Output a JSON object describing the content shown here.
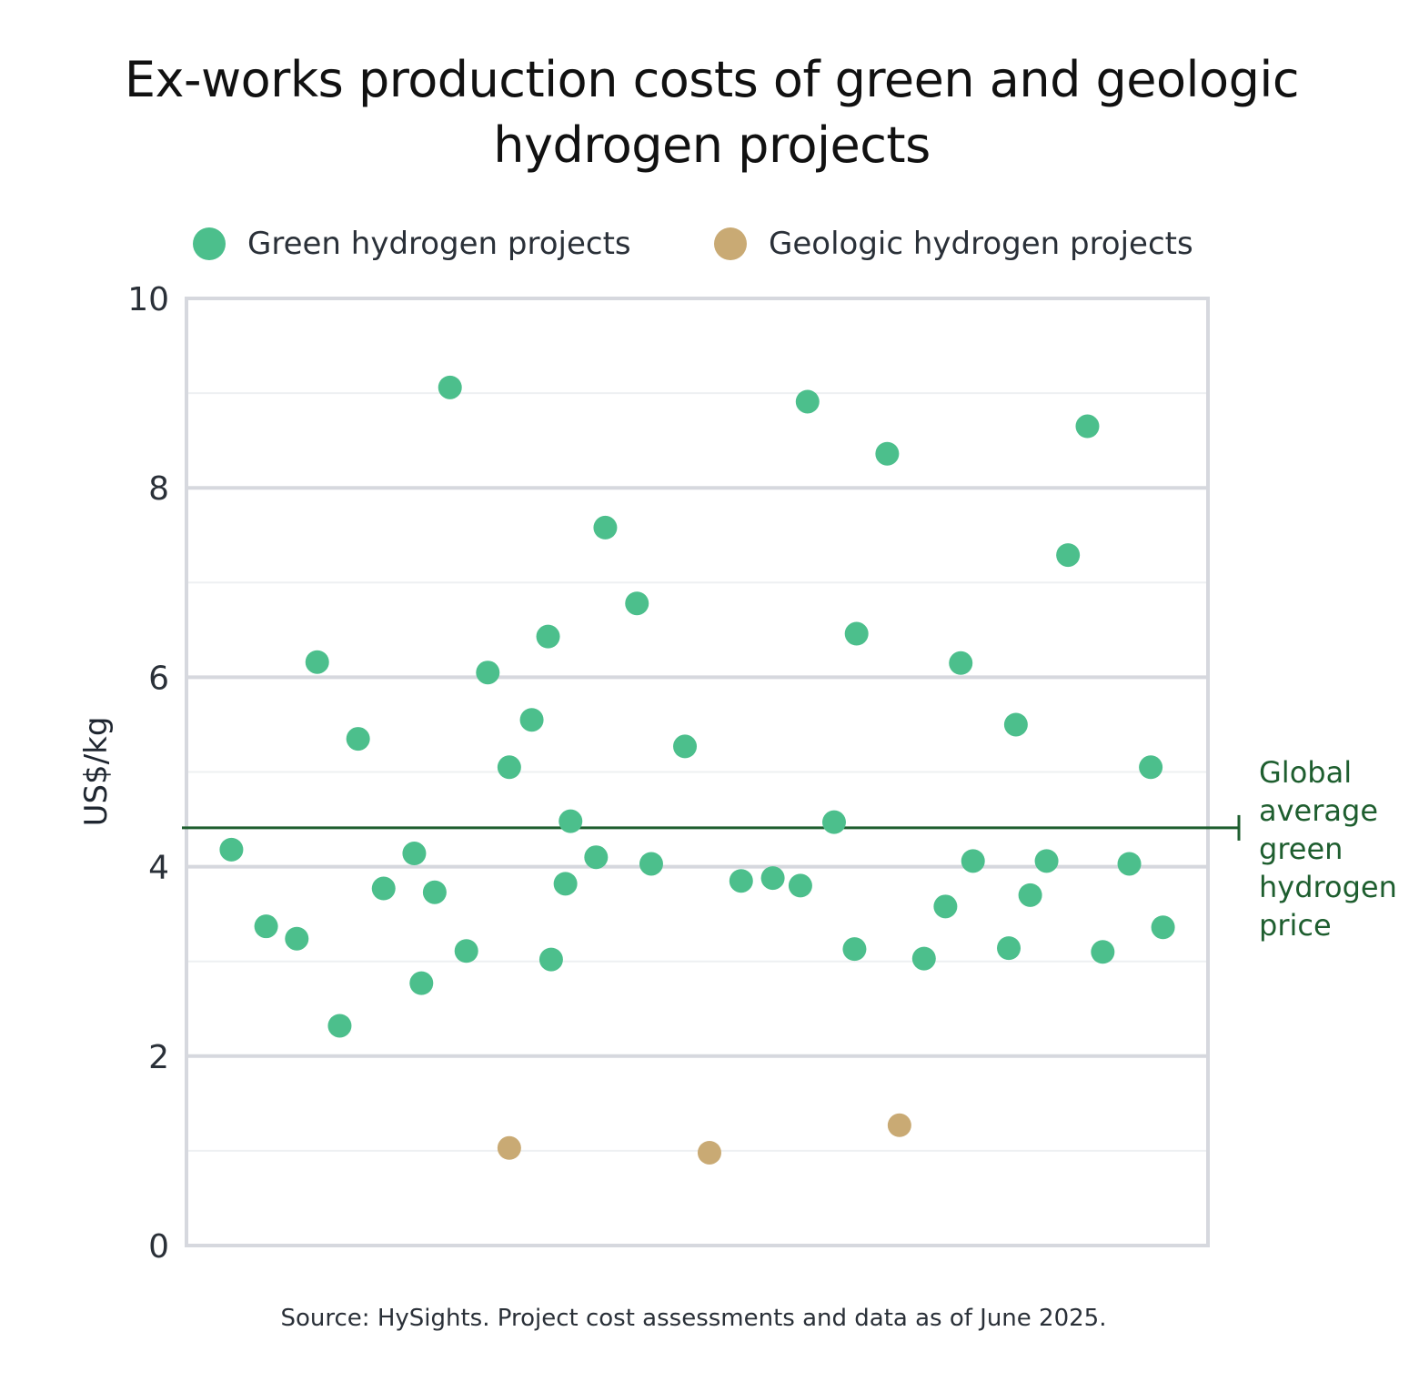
{
  "chart_data": {
    "type": "scatter",
    "title": "Ex-works production costs of green and geologic hydrogen projects",
    "title_lines": [
      "Ex-works production costs of green and geologic",
      "hydrogen projects"
    ],
    "xlabel": "",
    "ylabel": "US$/kg",
    "ylim": [
      0,
      10
    ],
    "yticks": [
      0,
      2,
      4,
      6,
      8,
      10
    ],
    "xlim": [
      0,
      1
    ],
    "grid": true,
    "legend_position": "top",
    "colors": {
      "green": "#4cbf8c",
      "geologic": "#c9aa74",
      "average": "#1e5e2f",
      "axis": "#d6d8de"
    },
    "series": [
      {
        "name": "Green hydrogen projects",
        "color": "#4cbf8c",
        "points": [
          [
            0.044,
            4.18
          ],
          [
            0.078,
            3.37
          ],
          [
            0.108,
            3.24
          ],
          [
            0.128,
            6.16
          ],
          [
            0.15,
            2.32
          ],
          [
            0.168,
            5.35
          ],
          [
            0.193,
            3.77
          ],
          [
            0.223,
            4.14
          ],
          [
            0.23,
            2.77
          ],
          [
            0.243,
            3.73
          ],
          [
            0.258,
            9.06
          ],
          [
            0.274,
            3.11
          ],
          [
            0.295,
            6.05
          ],
          [
            0.316,
            5.05
          ],
          [
            0.338,
            5.55
          ],
          [
            0.354,
            6.43
          ],
          [
            0.357,
            3.02
          ],
          [
            0.371,
            3.82
          ],
          [
            0.376,
            4.48
          ],
          [
            0.401,
            4.1
          ],
          [
            0.41,
            7.58
          ],
          [
            0.441,
            6.78
          ],
          [
            0.455,
            4.03
          ],
          [
            0.488,
            5.27
          ],
          [
            0.543,
            3.85
          ],
          [
            0.574,
            3.88
          ],
          [
            0.601,
            3.8
          ],
          [
            0.608,
            8.91
          ],
          [
            0.634,
            4.47
          ],
          [
            0.654,
            3.13
          ],
          [
            0.656,
            6.46
          ],
          [
            0.686,
            8.36
          ],
          [
            0.722,
            3.03
          ],
          [
            0.743,
            3.58
          ],
          [
            0.758,
            6.15
          ],
          [
            0.77,
            4.06
          ],
          [
            0.805,
            3.14
          ],
          [
            0.812,
            5.5
          ],
          [
            0.826,
            3.7
          ],
          [
            0.842,
            4.06
          ],
          [
            0.863,
            7.29
          ],
          [
            0.882,
            8.65
          ],
          [
            0.897,
            3.1
          ],
          [
            0.923,
            4.03
          ],
          [
            0.944,
            5.05
          ],
          [
            0.956,
            3.36
          ]
        ]
      },
      {
        "name": "Geologic hydrogen projects",
        "color": "#c9aa74",
        "points": [
          [
            0.316,
            1.03
          ],
          [
            0.512,
            0.98
          ],
          [
            0.698,
            1.27
          ]
        ]
      }
    ],
    "reference_line": {
      "value": 4.41,
      "label": "Global average green hydrogen price",
      "label_lines": [
        "Global",
        "average",
        "green",
        "hydrogen",
        "price"
      ],
      "color": "#1e5e2f"
    },
    "source": "Source: HySights. Project cost assessments and data as of June 2025."
  }
}
